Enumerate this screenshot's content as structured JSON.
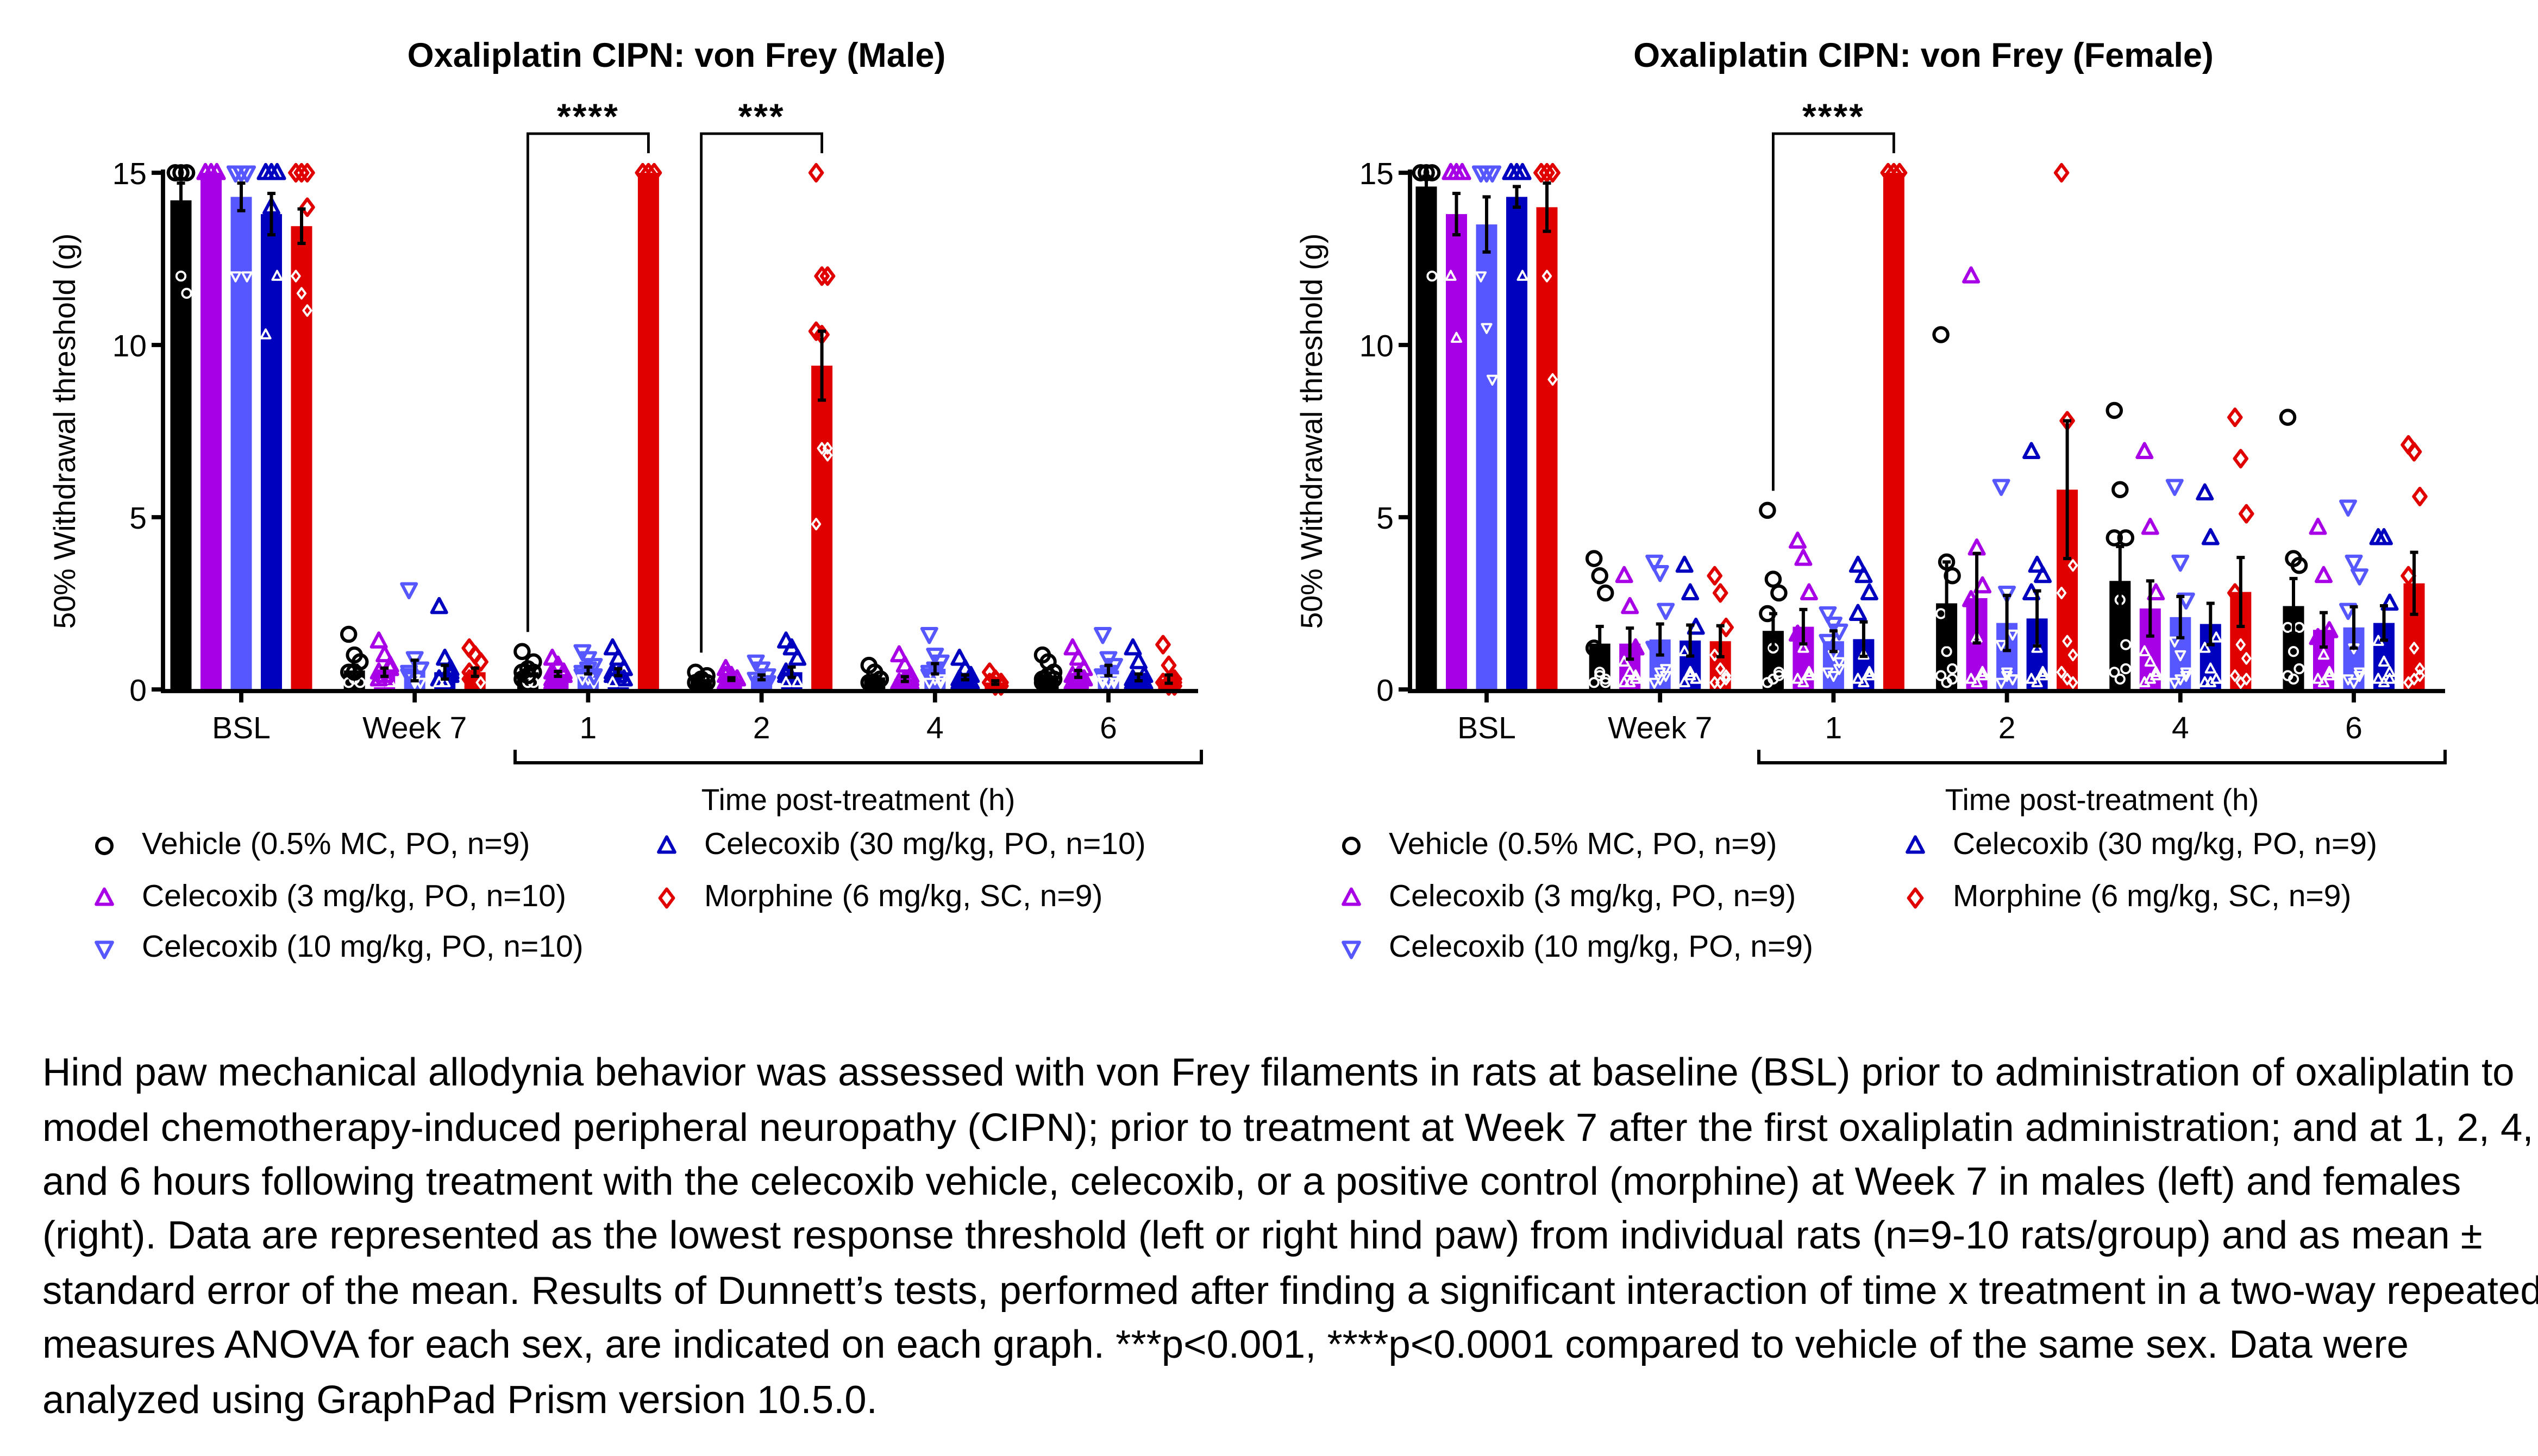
{
  "chart_data": [
    {
      "type": "bar",
      "title": "Oxaliplatin CIPN: von Frey (Male)",
      "ylabel": "50% Withdrawal threshold (g)",
      "xlabel": "Time post-treatment (h)",
      "categories": [
        "BSL",
        "Week 7",
        "1",
        "2",
        "4",
        "6"
      ],
      "ylim": [
        0,
        15
      ],
      "yticks": [
        0,
        5,
        10,
        15
      ],
      "grid": false,
      "legend_placement": "bottom",
      "significance": [
        {
          "category": "1",
          "label": "****"
        },
        {
          "category": "2",
          "label": "***"
        }
      ],
      "series": [
        {
          "name": "Vehicle (0.5% MC, PO, n=9)",
          "color": "#000000",
          "marker": "circle",
          "means": [
            14.2,
            0.55,
            0.5,
            0.3,
            0.35,
            0.4
          ],
          "sem": [
            0.5,
            0.15,
            0.1,
            0.05,
            0.07,
            0.08
          ],
          "points": [
            [
              15,
              15,
              15,
              15,
              15,
              15,
              15,
              12,
              11.5
            ],
            [
              1.6,
              1.0,
              0.8,
              0.5,
              0.3,
              0.2,
              0.2,
              0.5,
              0.8
            ],
            [
              1.1,
              0.6,
              0.5,
              0.3,
              0.2,
              0.2,
              0.5,
              0.4,
              0.8
            ],
            [
              0.5,
              0.3,
              0.2,
              0.2,
              0.3,
              0.4,
              0.2,
              0.3,
              0.2
            ],
            [
              0.7,
              0.5,
              0.3,
              0.2,
              0.2,
              0.3,
              0.2,
              0.5,
              0.3
            ],
            [
              1.0,
              0.8,
              0.5,
              0.3,
              0.2,
              0.3,
              0.2,
              0.4,
              0.3
            ]
          ]
        },
        {
          "name": "Celecoxib (3 mg/kg, PO, n=10)",
          "color": "#A800E6",
          "marker": "triangle-up",
          "means": [
            15,
            0.5,
            0.45,
            0.3,
            0.3,
            0.45
          ],
          "sem": [
            0,
            0.12,
            0.07,
            0.04,
            0.07,
            0.1
          ],
          "points": [
            [
              15,
              15,
              15,
              15,
              15,
              15,
              15,
              15,
              15,
              15
            ],
            [
              1.4,
              1.0,
              0.7,
              0.5,
              0.3,
              0.2,
              0.2,
              0.4,
              0.6,
              0.3
            ],
            [
              0.9,
              0.7,
              0.5,
              0.3,
              0.2,
              0.4,
              0.5,
              0.3,
              0.4,
              0.2
            ],
            [
              0.6,
              0.4,
              0.3,
              0.2,
              0.2,
              0.3,
              0.4,
              0.2,
              0.3,
              0.2
            ],
            [
              1.0,
              0.7,
              0.4,
              0.2,
              0.2,
              0.3,
              0.2,
              0.3,
              0.2,
              0.2
            ],
            [
              1.2,
              0.9,
              0.6,
              0.4,
              0.2,
              0.3,
              0.2,
              0.4,
              0.3,
              0.2
            ]
          ]
        },
        {
          "name": "Celecoxib (10 mg/kg, PO, n=10)",
          "color": "#5757FF",
          "marker": "triangle-down",
          "means": [
            14.3,
            0.55,
            0.55,
            0.35,
            0.6,
            0.55
          ],
          "sem": [
            0.4,
            0.3,
            0.1,
            0.07,
            0.15,
            0.15
          ],
          "points": [
            [
              15,
              15,
              15,
              15,
              15,
              15,
              15,
              15,
              12,
              12
            ],
            [
              2.9,
              0.9,
              0.6,
              0.3,
              0.2,
              0.2,
              0.4,
              0.3,
              0.2,
              0.5
            ],
            [
              1.1,
              0.9,
              0.7,
              0.5,
              0.3,
              0.2,
              0.4,
              0.6,
              0.4,
              0.3
            ],
            [
              0.8,
              0.6,
              0.4,
              0.3,
              0.2,
              0.2,
              0.3,
              0.2,
              0.2,
              0.3
            ],
            [
              1.6,
              1.0,
              0.8,
              0.5,
              0.3,
              0.2,
              0.4,
              0.6,
              0.3,
              0.2
            ],
            [
              1.6,
              0.9,
              0.7,
              0.4,
              0.2,
              0.2,
              0.3,
              0.5,
              0.3,
              0.2
            ]
          ]
        },
        {
          "name": "Celecoxib (30 mg/kg, PO, n=10)",
          "color": "#0000BF",
          "marker": "triangle-up",
          "means": [
            13.8,
            0.5,
            0.5,
            0.5,
            0.35,
            0.35
          ],
          "sem": [
            0.6,
            0.2,
            0.1,
            0.15,
            0.07,
            0.1
          ],
          "points": [
            [
              15,
              15,
              15,
              15,
              15,
              15,
              15,
              14,
              12,
              10.3
            ],
            [
              2.4,
              0.9,
              0.6,
              0.3,
              0.2,
              0.4,
              0.3,
              0.2,
              0.5,
              0.2
            ],
            [
              1.2,
              0.9,
              0.6,
              0.4,
              0.3,
              0.2,
              0.5,
              0.4,
              0.3,
              0.2
            ],
            [
              1.4,
              1.2,
              0.9,
              0.5,
              0.3,
              0.2,
              0.4,
              0.3,
              0.2,
              0.2
            ],
            [
              0.9,
              0.6,
              0.4,
              0.3,
              0.2,
              0.2,
              0.3,
              0.2,
              0.2,
              0.2
            ],
            [
              1.2,
              0.8,
              0.4,
              0.3,
              0.2,
              0.2,
              0.3,
              0.2,
              0.2,
              0.2
            ]
          ]
        },
        {
          "name": "Morphine (6 mg/kg, SC, n=9)",
          "color": "#E00000",
          "marker": "diamond",
          "means": [
            13.45,
            0.5,
            15,
            9.4,
            0.2,
            0.3
          ],
          "sem": [
            0.5,
            0.12,
            0,
            1.0,
            0.05,
            0.12
          ],
          "points": [
            [
              15,
              15,
              15,
              15,
              15,
              14,
              12,
              11.5,
              11
            ],
            [
              1.2,
              1.0,
              0.8,
              0.5,
              0.3,
              0.2,
              0.3,
              0.4,
              0.2
            ],
            [
              15,
              15,
              15,
              15,
              15,
              15,
              15,
              15,
              15
            ],
            [
              15,
              12,
              12,
              10.4,
              10.3,
              6.8,
              4.8,
              7,
              7
            ],
            [
              0.5,
              0.3,
              0.2,
              0.2,
              0.1,
              0.1,
              0.2,
              0.1,
              0.2
            ],
            [
              1.3,
              0.7,
              0.3,
              0.2,
              0.2,
              0.1,
              0.2,
              0.1,
              0.2
            ]
          ]
        }
      ]
    },
    {
      "type": "bar",
      "title": "Oxaliplatin CIPN: von Frey (Female)",
      "ylabel": "50% Withdrawal threshold (g)",
      "xlabel": "Time post-treatment (h)",
      "categories": [
        "BSL",
        "Week 7",
        "1",
        "2",
        "4",
        "6"
      ],
      "ylim": [
        0,
        15
      ],
      "yticks": [
        0,
        5,
        10,
        15
      ],
      "grid": false,
      "legend_placement": "bottom",
      "significance": [
        {
          "category": "1",
          "label": "****"
        }
      ],
      "series": [
        {
          "name": "Vehicle (0.5% MC, PO, n=9)",
          "color": "#000000",
          "marker": "circle",
          "means": [
            14.6,
            1.33,
            1.7,
            2.5,
            3.15,
            2.42
          ],
          "sem": [
            0.3,
            0.5,
            0.5,
            1.2,
            1.0,
            0.8
          ],
          "points": [
            [
              15,
              15,
              15,
              15,
              15,
              15,
              15,
              15,
              12
            ],
            [
              3.8,
              3.3,
              2.8,
              1.2,
              0.5,
              0.3,
              0.2,
              0.4,
              0.2
            ],
            [
              5.2,
              3.2,
              2.8,
              2.2,
              1.2,
              0.5,
              0.2,
              0.3,
              0.4
            ],
            [
              10.3,
              3.7,
              3.3,
              2.2,
              1.1,
              0.6,
              0.4,
              0.2,
              0.3
            ],
            [
              8.1,
              5.8,
              4.4,
              4.4,
              2.6,
              1.3,
              0.5,
              0.3,
              0.6
            ],
            [
              7.9,
              3.8,
              3.6,
              1.8,
              1.1,
              1.8,
              0.4,
              0.3,
              0.6
            ]
          ]
        },
        {
          "name": "Celecoxib (3 mg/kg, PO, n=9)",
          "color": "#A800E6",
          "marker": "triangle-up",
          "means": [
            13.8,
            1.33,
            1.82,
            2.65,
            2.35,
            1.73
          ],
          "sem": [
            0.6,
            0.45,
            0.5,
            1.3,
            0.8,
            0.5
          ],
          "points": [
            [
              15,
              15,
              15,
              15,
              15,
              15,
              12,
              10.2,
              15
            ],
            [
              3.3,
              2.4,
              1.2,
              0.8,
              0.5,
              0.3,
              0.2,
              0.2,
              0.4
            ],
            [
              4.3,
              3.8,
              2.8,
              1.6,
              1.2,
              0.5,
              0.3,
              0.2,
              0.4
            ],
            [
              12,
              4.1,
              3.0,
              2.6,
              1.5,
              0.5,
              0.3,
              0.2,
              0.4
            ],
            [
              6.9,
              4.7,
              2.8,
              1.1,
              0.8,
              0.4,
              0.2,
              0.3,
              0.5
            ],
            [
              4.7,
              3.3,
              1.7,
              1.5,
              1.0,
              0.5,
              0.3,
              0.2,
              0.4
            ]
          ]
        },
        {
          "name": "Celecoxib (10 mg/kg, PO, n=9)",
          "color": "#5757FF",
          "marker": "triangle-down",
          "means": [
            13.5,
            1.45,
            1.4,
            1.93,
            2.1,
            1.8
          ],
          "sem": [
            0.8,
            0.45,
            0.3,
            0.8,
            0.6,
            0.6
          ],
          "points": [
            [
              15,
              15,
              15,
              15,
              15,
              15,
              12,
              10.5,
              9
            ],
            [
              3.7,
              3.4,
              2.3,
              1.2,
              0.5,
              0.4,
              0.2,
              0.3,
              0.6
            ],
            [
              2.2,
              1.9,
              1.7,
              1.4,
              1.0,
              0.8,
              0.5,
              0.4,
              0.6
            ],
            [
              5.9,
              2.8,
              1.6,
              1.3,
              0.5,
              0.3,
              0.2,
              0.4,
              0.3
            ],
            [
              5.9,
              3.7,
              2.6,
              1.4,
              1.0,
              0.4,
              0.2,
              0.3,
              0.5
            ],
            [
              5.3,
              3.7,
              3.3,
              2.3,
              1.2,
              0.5,
              0.3,
              0.2,
              0.4
            ]
          ]
        },
        {
          "name": "Celecoxib (30 mg/kg, PO, n=9)",
          "color": "#0000BF",
          "marker": "triangle-up",
          "means": [
            14.3,
            1.42,
            1.46,
            2.06,
            1.9,
            1.93
          ],
          "sem": [
            0.3,
            0.45,
            0.5,
            0.8,
            0.6,
            0.5
          ],
          "points": [
            [
              15,
              15,
              15,
              15,
              15,
              15,
              15,
              15,
              12
            ],
            [
              3.6,
              2.8,
              1.8,
              1.1,
              0.5,
              0.3,
              0.2,
              0.4,
              0.3
            ],
            [
              3.6,
              3.3,
              2.8,
              2.2,
              1.0,
              0.5,
              0.3,
              0.2,
              0.4
            ],
            [
              6.9,
              3.6,
              3.3,
              2.8,
              1.2,
              0.5,
              0.3,
              0.2,
              0.4
            ],
            [
              5.7,
              4.4,
              1.5,
              1.2,
              0.6,
              0.3,
              0.2,
              0.2,
              0.3
            ],
            [
              4.4,
              4.4,
              2.5,
              1.4,
              0.8,
              0.5,
              0.3,
              0.2,
              0.3
            ]
          ]
        },
        {
          "name": "Morphine (6 mg/kg, SC, n=9)",
          "color": "#E00000",
          "marker": "diamond",
          "means": [
            14.0,
            1.4,
            15,
            5.8,
            2.83,
            3.08
          ],
          "sem": [
            0.7,
            0.45,
            0,
            2.0,
            1.0,
            0.9
          ],
          "points": [
            [
              15,
              15,
              15,
              15,
              15,
              15,
              15,
              12,
              9
            ],
            [
              3.3,
              2.8,
              1.8,
              1.0,
              0.6,
              0.3,
              0.2,
              0.2,
              0.4
            ],
            [
              15,
              15,
              15,
              15,
              15,
              15,
              15,
              15,
              15
            ],
            [
              15,
              7.8,
              3.6,
              2.8,
              1.4,
              1.0,
              0.5,
              0.3,
              0.2
            ],
            [
              7.9,
              6.7,
              5.1,
              2.8,
              1.3,
              0.9,
              0.4,
              0.2,
              0.3
            ],
            [
              7.1,
              6.9,
              5.6,
              3.3,
              1.2,
              0.4,
              0.2,
              0.3,
              0.6
            ]
          ]
        }
      ]
    }
  ],
  "caption": "Hind paw mechanical allodynia behavior was assessed with von Frey filaments in rats at baseline (BSL) prior to administration of oxaliplatin to model chemotherapy-induced peripheral neuropathy (CIPN); prior to treatment at Week 7 after the first oxaliplatin administration; and at 1, 2, 4, and 6 hours following treatment with the celecoxib vehicle, celecoxib, or a positive control (morphine) at Week 7 in males (left) and females (right). Data are represented as the lowest response threshold (left or right hind paw) from individual rats (n=9-10 rats/group) and as mean ± standard error of the mean. Results of Dunnett’s tests, performed after finding a significant interaction of time x treatment in a two-way repeated measures ANOVA for each sex, are indicated on each graph. ***p<0.001, ****p<0.0001 compared to vehicle of the same sex. Data were analyzed using GraphPad Prism version 10.5.0."
}
